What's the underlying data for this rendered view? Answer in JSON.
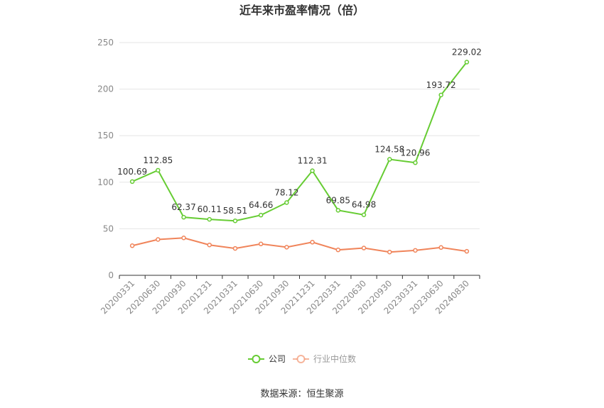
{
  "chart_data": {
    "type": "line",
    "title": "近年来市盈率情况（倍）",
    "categories": [
      "20200331",
      "20200630",
      "20200930",
      "20201231",
      "20210331",
      "20210630",
      "20210930",
      "20211231",
      "20220331",
      "20220630",
      "20220930",
      "20230331",
      "20230630",
      "20240830"
    ],
    "series": [
      {
        "name": "公司",
        "color": "#66cc33",
        "values": [
          100.69,
          112.85,
          62.37,
          60.11,
          58.51,
          64.66,
          78.12,
          112.31,
          69.85,
          64.98,
          124.58,
          120.96,
          193.72,
          229.02
        ],
        "labels": [
          "100.69",
          "112.85",
          "62.37",
          "60.11",
          "58.51",
          "64.66",
          "78.12",
          "112.31",
          "69.85",
          "64.98",
          "124.58",
          "120.96",
          "193.72",
          "229.02"
        ]
      },
      {
        "name": "行业中位数",
        "color": "#f0845a",
        "values": [
          31.8,
          38.5,
          40.2,
          32.6,
          28.9,
          33.7,
          30.2,
          35.6,
          27.3,
          29.3,
          25.0,
          26.8,
          29.9,
          25.8
        ]
      }
    ],
    "ylim": [
      0,
      250
    ],
    "yticks": [
      0,
      50,
      100,
      150,
      200,
      250
    ],
    "grid": true,
    "legend": "bottom",
    "source": "数据来源：恒生聚源"
  }
}
